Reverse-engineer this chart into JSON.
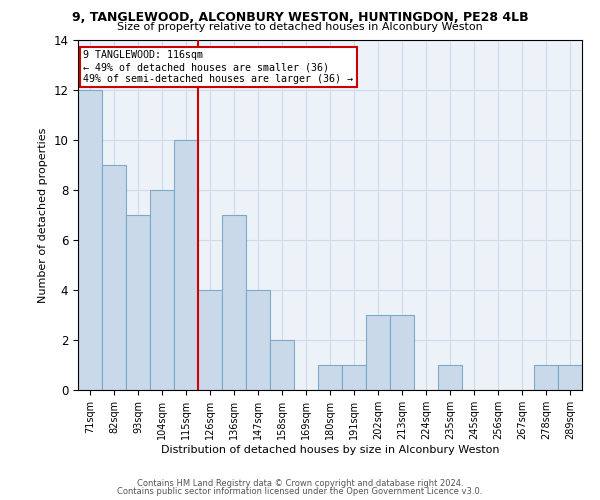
{
  "title1": "9, TANGLEWOOD, ALCONBURY WESTON, HUNTINGDON, PE28 4LB",
  "title2": "Size of property relative to detached houses in Alconbury Weston",
  "xlabel": "Distribution of detached houses by size in Alconbury Weston",
  "ylabel": "Number of detached properties",
  "categories": [
    "71sqm",
    "82sqm",
    "93sqm",
    "104sqm",
    "115sqm",
    "126sqm",
    "136sqm",
    "147sqm",
    "158sqm",
    "169sqm",
    "180sqm",
    "191sqm",
    "202sqm",
    "213sqm",
    "224sqm",
    "235sqm",
    "245sqm",
    "256sqm",
    "267sqm",
    "278sqm",
    "289sqm"
  ],
  "values": [
    12,
    9,
    7,
    8,
    10,
    4,
    7,
    4,
    2,
    0,
    1,
    1,
    3,
    3,
    0,
    1,
    0,
    0,
    0,
    1,
    1
  ],
  "bar_color": "#c9d9ea",
  "bar_edge_color": "#7aaac8",
  "bar_linewidth": 0.8,
  "vline_x_index": 4.5,
  "vline_color": "#cc0000",
  "annotation_line1": "9 TANGLEWOOD: 116sqm",
  "annotation_line2": "← 49% of detached houses are smaller (36)",
  "annotation_line3": "49% of semi-detached houses are larger (36) →",
  "annotation_box_color": "#cc0000",
  "ylim": [
    0,
    14
  ],
  "yticks": [
    0,
    2,
    4,
    6,
    8,
    10,
    12,
    14
  ],
  "grid_color": "#d0dae8",
  "background_color": "#edf2f9",
  "footnote1": "Contains HM Land Registry data © Crown copyright and database right 2024.",
  "footnote2": "Contains public sector information licensed under the Open Government Licence v3.0."
}
